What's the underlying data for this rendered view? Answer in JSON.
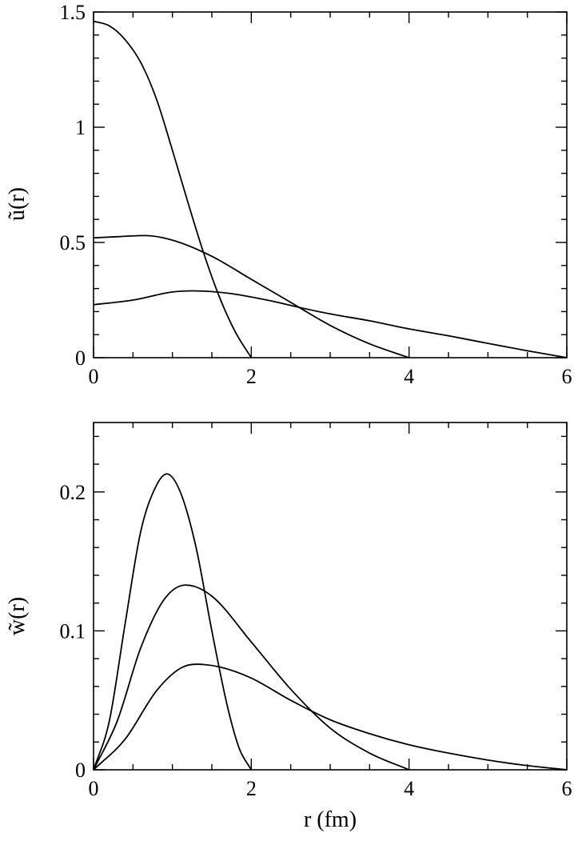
{
  "chart_data": [
    {
      "type": "line",
      "title": "",
      "xlabel": "",
      "ylabel": "ũ(r)",
      "xlim": [
        0,
        6
      ],
      "ylim": [
        0,
        1.5
      ],
      "xticks": [
        0,
        2,
        4,
        6
      ],
      "xtick_labels": [
        "0",
        "2",
        "4",
        "6"
      ],
      "yticks": [
        0,
        0.5,
        1,
        1.5
      ],
      "ytick_labels": [
        "0",
        "0.5",
        "1",
        "1.5"
      ],
      "grid": false,
      "series": [
        {
          "x": [
            0,
            0.2,
            0.4,
            0.6,
            0.8,
            1.0,
            1.2,
            1.4,
            1.6,
            1.8,
            2.0
          ],
          "y": [
            1.46,
            1.44,
            1.38,
            1.28,
            1.12,
            0.9,
            0.67,
            0.45,
            0.26,
            0.11,
            0
          ]
        },
        {
          "x": [
            0,
            0.3,
            0.65,
            1.0,
            1.5,
            2.0,
            2.5,
            3.0,
            3.5,
            4.0
          ],
          "y": [
            0.52,
            0.525,
            0.53,
            0.51,
            0.44,
            0.34,
            0.24,
            0.14,
            0.06,
            0
          ]
        },
        {
          "x": [
            0,
            0.5,
            1.0,
            1.25,
            1.7,
            2.2,
            2.65,
            3.0,
            3.5,
            4.0,
            4.5,
            5.0,
            5.5,
            6.0
          ],
          "y": [
            0.23,
            0.25,
            0.285,
            0.29,
            0.28,
            0.25,
            0.215,
            0.19,
            0.16,
            0.125,
            0.095,
            0.062,
            0.03,
            0
          ]
        }
      ]
    },
    {
      "type": "line",
      "title": "",
      "xlabel": "r (fm)",
      "ylabel": "w̃(r)",
      "xlim": [
        0,
        6
      ],
      "ylim": [
        0,
        0.25
      ],
      "xticks": [
        0,
        2,
        4,
        6
      ],
      "xtick_labels": [
        "0",
        "2",
        "4",
        "6"
      ],
      "yticks": [
        0,
        0.1,
        0.2
      ],
      "ytick_labels": [
        "0",
        "0.1",
        "0.2"
      ],
      "grid": false,
      "series": [
        {
          "x": [
            0,
            0.2,
            0.4,
            0.6,
            0.8,
            0.93,
            1.1,
            1.3,
            1.5,
            1.7,
            1.85,
            2.0
          ],
          "y": [
            0,
            0.035,
            0.105,
            0.172,
            0.205,
            0.213,
            0.2,
            0.16,
            0.1,
            0.045,
            0.015,
            0
          ]
        },
        {
          "x": [
            0,
            0.3,
            0.6,
            0.9,
            1.17,
            1.5,
            2.0,
            2.5,
            3.0,
            3.5,
            4.0
          ],
          "y": [
            0,
            0.035,
            0.088,
            0.123,
            0.133,
            0.125,
            0.092,
            0.058,
            0.03,
            0.012,
            0
          ]
        },
        {
          "x": [
            0,
            0.4,
            0.8,
            1.1,
            1.3,
            1.6,
            2.0,
            2.5,
            3.0,
            3.5,
            4.0,
            4.5,
            5.0,
            5.5,
            6.0
          ],
          "y": [
            0,
            0.022,
            0.057,
            0.073,
            0.076,
            0.074,
            0.066,
            0.05,
            0.036,
            0.026,
            0.018,
            0.012,
            0.007,
            0.003,
            0
          ]
        }
      ]
    }
  ]
}
